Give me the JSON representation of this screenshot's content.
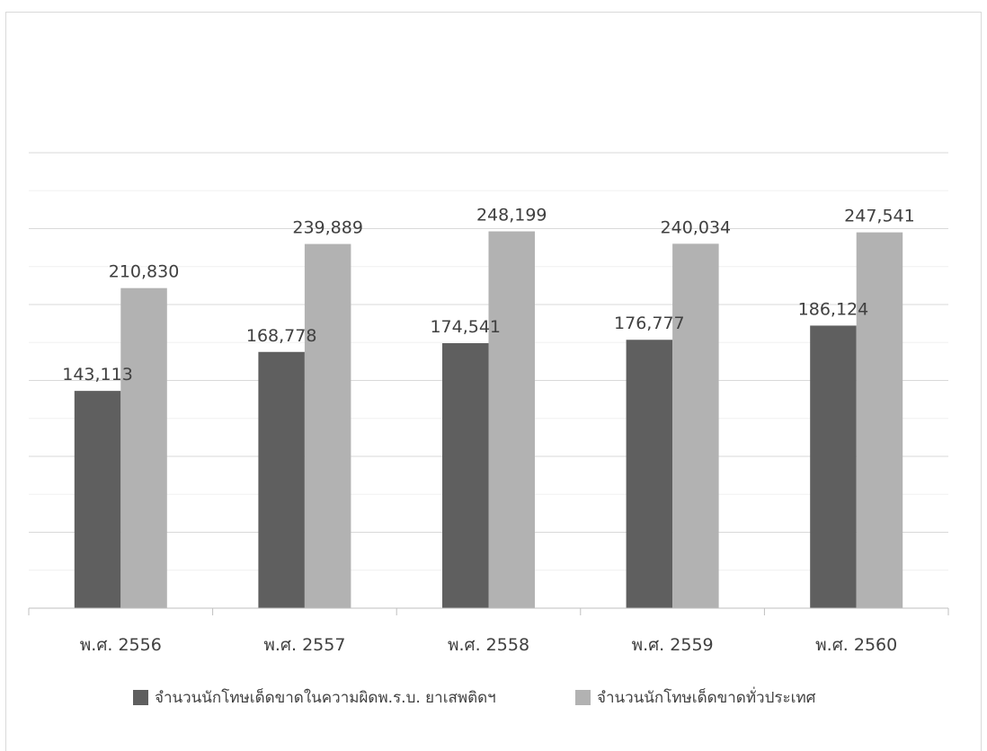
{
  "chart_data": {
    "type": "bar",
    "title": "",
    "xlabel": "",
    "ylabel": "",
    "categories": [
      "พ.ศ. 2556",
      "พ.ศ. 2557",
      "พ.ศ. 2558",
      "พ.ศ. 2559",
      "พ.ศ. 2560"
    ],
    "series": [
      {
        "name": "จำนวนนักโทษเด็ดขาดในความผิดพ.ร.บ. ยาเสพติดฯ",
        "values": [
          143113,
          168778,
          174541,
          176777,
          186124
        ],
        "labels": [
          "143,113",
          "168,778",
          "174,541",
          "176,777",
          "186,124"
        ],
        "color": "#5f5f5f"
      },
      {
        "name": "จำนวนนักโทษเด็ดขาดทั่วประเทศ",
        "values": [
          210830,
          239889,
          248199,
          240034,
          247541
        ],
        "labels": [
          "210,830",
          "239,889",
          "248,199",
          "240,034",
          "247,541"
        ],
        "color": "#b2b2b2"
      }
    ],
    "ylim": [
      0,
      300000
    ],
    "gridlines": true,
    "gridline_step": 50000,
    "minor_gridlines": true,
    "y_axis_labels_visible": false,
    "legend_position": "bottom"
  }
}
